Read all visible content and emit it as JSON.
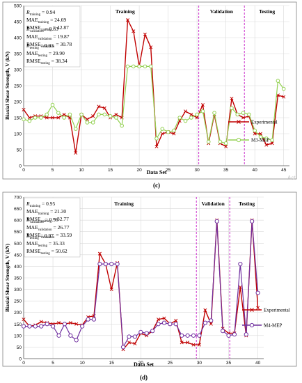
{
  "panels": [
    {
      "label": "(c)",
      "stats": [
        [
          {
            "base": "R",
            "sub": "training",
            "val": " = 0.94"
          },
          {
            "base": "MAE",
            "sub": "training",
            "val": " = 24.69"
          },
          {
            "base": "RMSE",
            "sub": "training",
            "val": " = 42.87"
          }
        ],
        [
          {
            "base": "R",
            "sub": "validation",
            "val": " = 0.83"
          },
          {
            "base": "MAE",
            "sub": "validation",
            "val": " = 19.87"
          },
          {
            "base": "RMSE",
            "sub": "validation",
            "val": " = 30.78"
          }
        ],
        [
          {
            "base": "R",
            "sub": "testing",
            "val": " = 0.93"
          },
          {
            "base": "MAE",
            "sub": "testing",
            "val": " = 29.90"
          },
          {
            "base": "RMSE",
            "sub": "testing",
            "val": " = 38.34"
          }
        ]
      ],
      "watermark": "Act"
    },
    {
      "label": "(d)",
      "stats": [
        [
          {
            "base": "R",
            "sub": "training",
            "val": " = 0.95"
          },
          {
            "base": "MAE",
            "sub": "training",
            "val": " = 21.30"
          },
          {
            "base": "RMSE",
            "sub": "training",
            "val": " = 32.77"
          }
        ],
        [
          {
            "base": "R",
            "sub": "validation",
            "val": " = 0.98"
          },
          {
            "base": "MAE",
            "sub": "validation",
            "val": " = 26.77"
          },
          {
            "base": "RMSE",
            "sub": "validation",
            "val": " = 33.59"
          }
        ],
        [
          {
            "base": "R",
            "sub": "testing",
            "val": " = 0.97"
          },
          {
            "base": "MAE",
            "sub": "testing",
            "val": " = 35.33"
          },
          {
            "base": "RMSE",
            "sub": "testing",
            "val": " = 50.62"
          }
        ]
      ],
      "watermark": ""
    }
  ],
  "colors": {
    "experimental": "#c00000",
    "m3": "#92d050",
    "m4": "#7030a0",
    "divider": "#cc33cc",
    "grid": "#d9d9d9",
    "text": "#000000"
  },
  "chart_data": [
    {
      "type": "line",
      "xlabel": "Data Set",
      "ylabel": "Biaxial Shear Strength, V (kN)",
      "xlim": [
        0,
        46
      ],
      "ylim": [
        0,
        500
      ],
      "xticks": [
        0,
        5,
        10,
        15,
        20,
        25,
        30,
        35,
        40,
        45
      ],
      "yticks": [
        0,
        50,
        100,
        150,
        200,
        250,
        300,
        350,
        400,
        450,
        500
      ],
      "grid": true,
      "legend_position": "right",
      "regions": [
        {
          "label": "Training",
          "from": 0,
          "to": 30.3
        },
        {
          "label": "Validation",
          "from": 30.3,
          "to": 38.2
        },
        {
          "label": "Testing",
          "from": 38.2,
          "to": 46
        }
      ],
      "dividers": [
        30.3,
        38.2
      ],
      "series": [
        {
          "name": "Experimental",
          "marker": "x",
          "x": [
            0,
            1,
            2,
            3,
            4,
            5,
            6,
            7,
            8,
            9,
            10,
            11,
            12,
            13,
            14,
            15,
            16,
            17,
            18,
            19,
            20,
            21,
            22,
            23,
            24,
            25,
            26,
            27,
            28,
            29,
            30,
            31,
            32,
            33,
            34,
            35,
            36,
            37,
            38,
            39,
            40,
            41,
            42,
            43,
            44,
            45
          ],
          "y": [
            175,
            150,
            155,
            155,
            150,
            150,
            150,
            160,
            150,
            40,
            160,
            145,
            155,
            185,
            180,
            150,
            160,
            150,
            455,
            420,
            310,
            410,
            370,
            60,
            100,
            105,
            100,
            140,
            170,
            160,
            150,
            190,
            70,
            160,
            70,
            60,
            210,
            160,
            150,
            155,
            100,
            100,
            65,
            70,
            220,
            215
          ]
        },
        {
          "name": "M3-MEP",
          "marker": "o",
          "x": [
            0,
            1,
            2,
            3,
            4,
            5,
            6,
            7,
            8,
            9,
            10,
            11,
            12,
            13,
            14,
            15,
            16,
            17,
            18,
            19,
            20,
            21,
            22,
            23,
            24,
            25,
            26,
            27,
            28,
            29,
            30,
            31,
            32,
            33,
            34,
            35,
            36,
            37,
            38,
            39,
            40,
            41,
            42,
            43,
            44,
            45
          ],
          "y": [
            145,
            140,
            150,
            150,
            160,
            190,
            165,
            150,
            160,
            115,
            160,
            135,
            135,
            160,
            160,
            155,
            150,
            125,
            310,
            310,
            310,
            310,
            310,
            85,
            115,
            105,
            110,
            150,
            140,
            150,
            160,
            170,
            75,
            165,
            75,
            70,
            180,
            160,
            165,
            160,
            110,
            90,
            85,
            80,
            265,
            240
          ]
        }
      ]
    },
    {
      "type": "line",
      "xlabel": "Data Set",
      "ylabel": "Biaxial Shear Strength, V (kN)",
      "xlim": [
        0,
        41
      ],
      "ylim": [
        0,
        700
      ],
      "xticks": [
        0,
        5,
        10,
        15,
        20,
        25,
        30,
        35,
        40
      ],
      "yticks": [
        0,
        50,
        100,
        150,
        200,
        250,
        300,
        350,
        400,
        450,
        500,
        550,
        600,
        650,
        700
      ],
      "grid": true,
      "legend_position": "right",
      "regions": [
        {
          "label": "Training",
          "from": 0,
          "to": 29.5
        },
        {
          "label": "Validation",
          "from": 29.5,
          "to": 35.2
        },
        {
          "label": "Testing",
          "from": 35.2,
          "to": 41
        }
      ],
      "dividers": [
        29.5,
        35.2
      ],
      "series": [
        {
          "name": "Experimental",
          "marker": "x",
          "x": [
            0,
            1,
            2,
            3,
            4,
            5,
            6,
            7,
            8,
            9,
            10,
            11,
            12,
            13,
            14,
            15,
            16,
            17,
            18,
            19,
            20,
            21,
            22,
            23,
            24,
            25,
            26,
            27,
            28,
            29,
            30,
            31,
            32,
            33,
            34,
            35,
            36,
            37,
            38,
            39,
            40
          ],
          "y": [
            170,
            140,
            145,
            160,
            155,
            150,
            155,
            150,
            155,
            150,
            145,
            180,
            185,
            455,
            410,
            300,
            415,
            40,
            70,
            65,
            110,
            100,
            120,
            170,
            175,
            150,
            165,
            70,
            70,
            60,
            60,
            210,
            150,
            600,
            130,
            110,
            110,
            310,
            100,
            600,
            220
          ]
        },
        {
          "name": "M4-MEP",
          "marker": "o",
          "x": [
            0,
            1,
            2,
            3,
            4,
            5,
            6,
            7,
            8,
            9,
            10,
            11,
            12,
            13,
            14,
            15,
            16,
            17,
            18,
            19,
            20,
            21,
            22,
            23,
            24,
            25,
            26,
            27,
            28,
            29,
            30,
            31,
            32,
            33,
            34,
            35,
            36,
            37,
            38,
            39,
            40
          ],
          "y": [
            140,
            140,
            140,
            140,
            150,
            140,
            100,
            150,
            100,
            80,
            140,
            170,
            170,
            410,
            410,
            410,
            410,
            50,
            95,
            95,
            115,
            110,
            120,
            150,
            155,
            150,
            150,
            100,
            100,
            100,
            100,
            155,
            165,
            595,
            120,
            100,
            105,
            410,
            105,
            595,
            285
          ]
        }
      ]
    }
  ]
}
